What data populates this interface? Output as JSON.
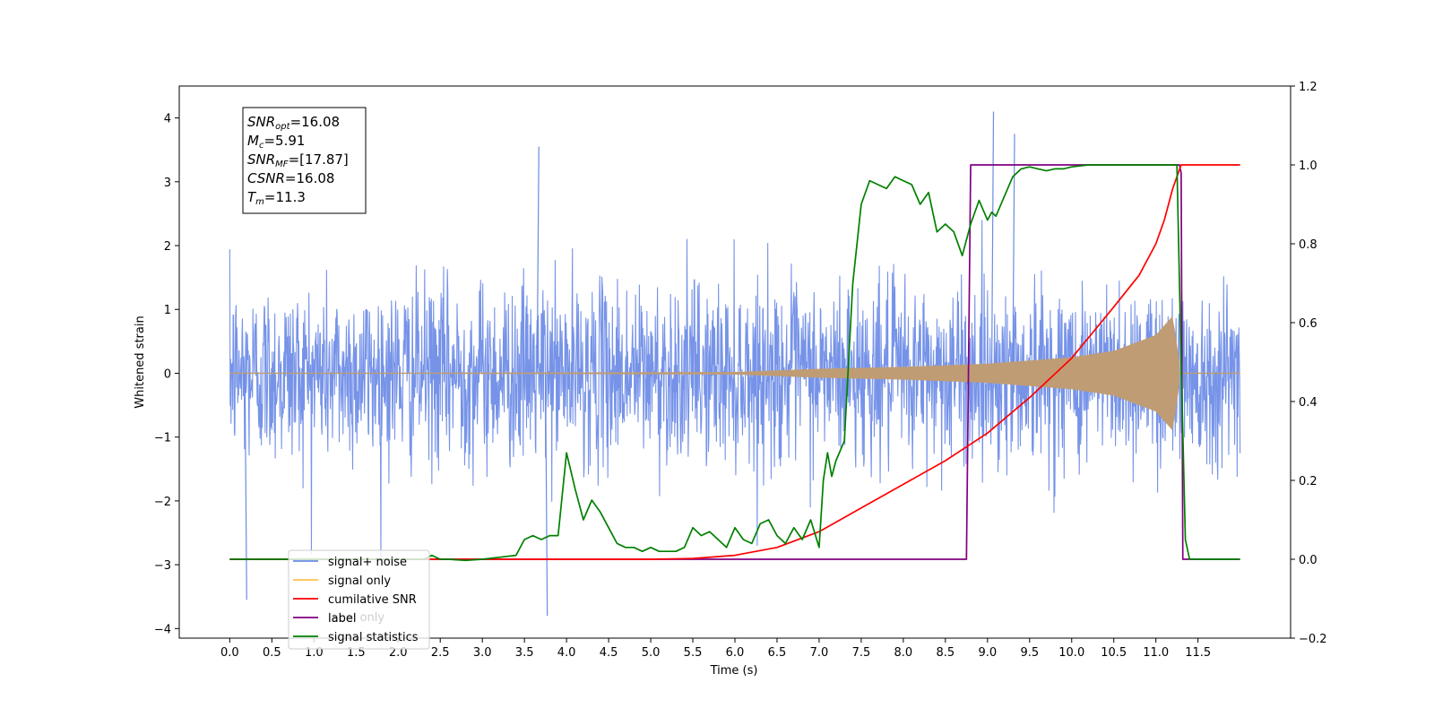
{
  "chart_data": {
    "type": "line",
    "xlabel": "Time (s)",
    "ylabel": "Whitened strain",
    "xlim": [
      -0.6,
      12.6
    ],
    "ylim_left": [
      -4.15,
      4.5
    ],
    "ylim_right": [
      -0.2,
      1.2
    ],
    "x_ticks": [
      "0.0",
      "0.5",
      "1.0",
      "1.5",
      "2.0",
      "2.5",
      "3.0",
      "3.5",
      "4.0",
      "4.5",
      "5.0",
      "5.5",
      "6.0",
      "6.5",
      "7.0",
      "7.5",
      "8.0",
      "8.5",
      "9.0",
      "9.5",
      "10.0",
      "10.5",
      "11.0",
      "11.5"
    ],
    "y_ticks_left": [
      "−4",
      "−3",
      "−2",
      "−1",
      "0",
      "1",
      "2",
      "3",
      "4"
    ],
    "y_ticks_right": [
      "−0.2",
      "0.0",
      "0.2",
      "0.4",
      "0.6",
      "0.8",
      "1.0",
      "1.2"
    ],
    "annotation": [
      {
        "base": "SNR",
        "sub": "opt",
        "rest": "=16.08"
      },
      {
        "base": "M",
        "sub": "c",
        "rest": "=5.91"
      },
      {
        "base": "SNR",
        "sub": "MF",
        "rest": "=[17.87]"
      },
      {
        "base": "CSNR",
        "sub": "",
        "rest": "=16.08"
      },
      {
        "base": "T",
        "sub": "m",
        "rest": "=11.3"
      }
    ],
    "legend": {
      "placement": "lower-left",
      "entries": [
        {
          "label": "signal+ noise",
          "color": "#6a8ae6"
        },
        {
          "label": "signal only",
          "color": "#ffc04d"
        },
        {
          "label": "cumilative SNR",
          "color": "#ff0000"
        },
        {
          "label": "label",
          "color": "#800080"
        },
        {
          "label": "signal statistics",
          "color": "#008000"
        }
      ],
      "hidden_text": "label only"
    },
    "series": [
      {
        "name": "signal+ noise",
        "axis": "left",
        "color": "#6a8ae6",
        "description": "white noise, std ~0.7, spanning 0 to 12 s",
        "x_range": [
          0.0,
          12.0
        ],
        "peak_max": 4.1,
        "peak_min": -3.8
      },
      {
        "name": "signal only",
        "axis": "left",
        "color": "#ffc04d",
        "description": "chirp with envelope growing from ~5.8 s to merger at 11.3 s",
        "envelope": {
          "x": [
            0.0,
            6.0,
            7.0,
            8.0,
            9.0,
            10.0,
            10.5,
            11.0,
            11.2,
            11.3
          ],
          "y": [
            0.0,
            0.02,
            0.07,
            0.1,
            0.15,
            0.25,
            0.35,
            0.6,
            0.9,
            0.0
          ]
        }
      },
      {
        "name": "cumilative SNR",
        "axis": "right",
        "color": "#ff0000",
        "x": [
          0.0,
          5.0,
          5.5,
          6.0,
          6.5,
          7.0,
          7.5,
          8.0,
          8.5,
          9.0,
          9.5,
          10.0,
          10.5,
          10.8,
          11.0,
          11.1,
          11.2,
          11.3,
          12.0
        ],
        "y": [
          0.0,
          0.0,
          0.002,
          0.01,
          0.03,
          0.07,
          0.13,
          0.19,
          0.25,
          0.32,
          0.41,
          0.51,
          0.64,
          0.72,
          0.8,
          0.86,
          0.94,
          1.0,
          1.0
        ]
      },
      {
        "name": "label",
        "axis": "right",
        "color": "#800080",
        "x": [
          0.0,
          8.75,
          8.8,
          11.28,
          11.3,
          11.32,
          12.0
        ],
        "y": [
          0.0,
          0.0,
          1.0,
          1.0,
          0.98,
          0.0,
          0.0
        ]
      },
      {
        "name": "signal statistics",
        "axis": "right",
        "color": "#008000",
        "x": [
          0.0,
          2.3,
          2.4,
          2.5,
          2.6,
          2.8,
          3.0,
          3.2,
          3.4,
          3.5,
          3.6,
          3.7,
          3.8,
          3.9,
          4.0,
          4.1,
          4.2,
          4.3,
          4.4,
          4.5,
          4.6,
          4.7,
          4.8,
          4.9,
          5.0,
          5.1,
          5.2,
          5.3,
          5.4,
          5.5,
          5.6,
          5.7,
          5.8,
          5.9,
          6.0,
          6.1,
          6.2,
          6.3,
          6.4,
          6.5,
          6.6,
          6.7,
          6.8,
          6.9,
          7.0,
          7.05,
          7.1,
          7.15,
          7.2,
          7.3,
          7.4,
          7.5,
          7.6,
          7.7,
          7.8,
          7.9,
          8.0,
          8.1,
          8.2,
          8.3,
          8.4,
          8.5,
          8.6,
          8.7,
          8.8,
          8.9,
          9.0,
          9.05,
          9.1,
          9.2,
          9.3,
          9.4,
          9.5,
          9.6,
          9.7,
          9.8,
          9.9,
          10.0,
          10.2,
          10.5,
          11.0,
          11.25,
          11.3,
          11.35,
          11.4,
          11.5,
          12.0
        ],
        "y": [
          0.0,
          0.0,
          0.01,
          0.0,
          0.0,
          -0.003,
          0.0,
          0.005,
          0.01,
          0.05,
          0.06,
          0.05,
          0.06,
          0.06,
          0.27,
          0.18,
          0.1,
          0.15,
          0.12,
          0.08,
          0.04,
          0.03,
          0.03,
          0.02,
          0.03,
          0.02,
          0.02,
          0.02,
          0.03,
          0.08,
          0.06,
          0.07,
          0.05,
          0.03,
          0.08,
          0.05,
          0.04,
          0.09,
          0.1,
          0.06,
          0.04,
          0.08,
          0.05,
          0.1,
          0.03,
          0.2,
          0.27,
          0.21,
          0.25,
          0.3,
          0.7,
          0.9,
          0.96,
          0.95,
          0.94,
          0.97,
          0.96,
          0.95,
          0.9,
          0.93,
          0.83,
          0.85,
          0.83,
          0.77,
          0.85,
          0.91,
          0.86,
          0.88,
          0.87,
          0.92,
          0.97,
          0.99,
          0.995,
          0.99,
          0.985,
          0.99,
          0.99,
          0.995,
          1.0,
          1.0,
          1.0,
          1.0,
          0.5,
          0.05,
          0.0,
          0.0,
          0.0
        ]
      }
    ]
  }
}
